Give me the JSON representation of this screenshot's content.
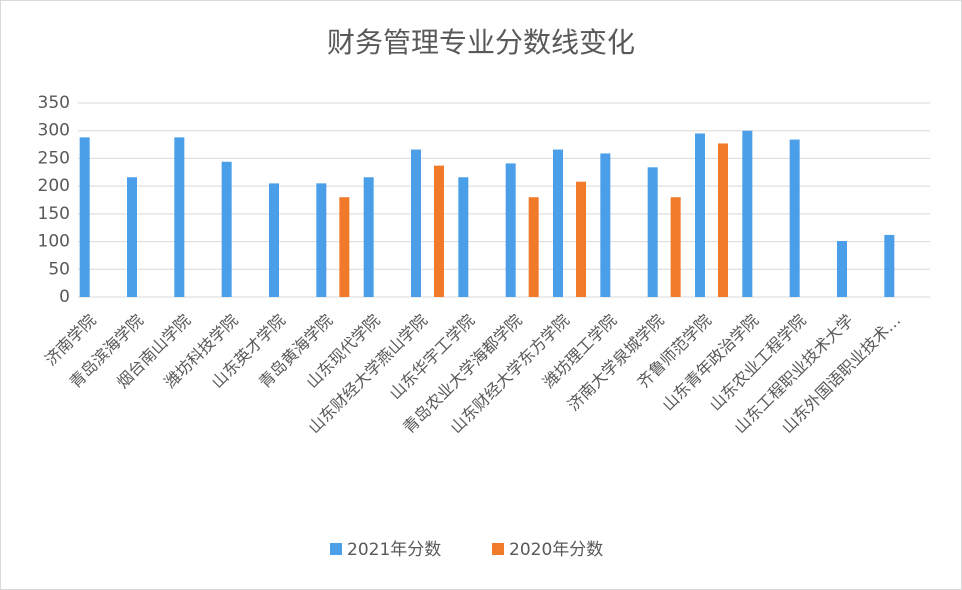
{
  "chart_data": {
    "type": "bar",
    "title": "财务管理专业分数线变化",
    "categories": [
      "济南学院",
      "青岛滨海学院",
      "烟台南山学院",
      "潍坊科技学院",
      "山东英才学院",
      "青岛黄海学院",
      "山东现代学院",
      "山东财经大学燕山学院",
      "山东华宇工学院",
      "青岛农业大学海都学院",
      "山东财经大学东方学院",
      "潍坊理工学院",
      "济南大学泉城学院",
      "齐鲁师范学院",
      "山东青年政治学院",
      "山东农业工程学院",
      "山东工程职业技术大学",
      "山东外国语职业技术…"
    ],
    "series": [
      {
        "name": "2021年分数",
        "color": "#4a9fe8",
        "values": [
          288,
          216,
          288,
          244,
          205,
          205,
          216,
          266,
          216,
          241,
          266,
          259,
          234,
          295,
          300,
          284,
          101,
          112
        ]
      },
      {
        "name": "2020年分数",
        "color": "#f07a2a",
        "values": [
          null,
          null,
          null,
          null,
          null,
          180,
          null,
          237,
          null,
          180,
          208,
          null,
          180,
          277,
          null,
          null,
          null,
          null
        ]
      }
    ],
    "ylim": [
      0,
      350
    ],
    "yticks": [
      0,
      50,
      100,
      150,
      200,
      250,
      300,
      350
    ],
    "grid": true,
    "legend": "bottom"
  }
}
